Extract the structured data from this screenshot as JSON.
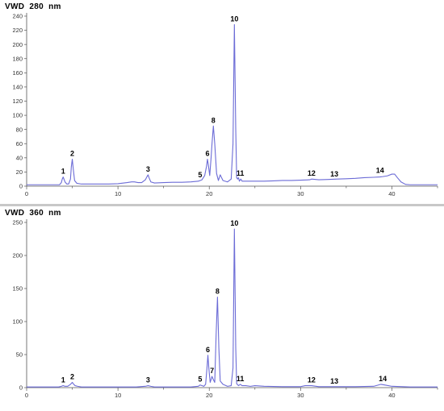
{
  "chart_data": [
    {
      "type": "line",
      "title": "VWD  280  nm",
      "xlim": [
        0,
        45
      ],
      "ylim": [
        0,
        240
      ],
      "x_ticks": [
        0,
        10,
        20,
        30,
        40
      ],
      "y_ticks": [
        0,
        20,
        40,
        60,
        80,
        100,
        120,
        140,
        160,
        180,
        200,
        220,
        240
      ],
      "line_color": "#6b6bd6",
      "grid": false,
      "legend": "none",
      "series": [
        {
          "x": [
            0,
            1,
            2,
            3,
            3.6,
            3.8,
            3.9,
            4.0,
            4.2,
            4.4,
            4.6,
            4.8,
            4.9,
            5.0,
            5.1,
            5.25,
            5.5,
            6,
            7,
            8,
            9,
            10,
            11,
            11.5,
            11.8,
            12.2,
            12.6,
            13.0,
            13.2,
            13.3,
            13.4,
            13.6,
            14,
            15,
            16,
            17,
            18,
            18.8,
            19.2,
            19.5,
            19.7,
            19.8,
            19.9,
            20.05,
            20.2,
            20.3,
            20.45,
            20.6,
            20.8,
            21.0,
            21.2,
            21.5,
            22.0,
            22.4,
            22.6,
            22.75,
            22.9,
            23.0,
            23.1,
            23.2,
            23.3,
            23.45,
            23.6,
            24,
            25,
            26,
            27,
            28,
            29,
            30,
            31,
            31.2,
            32,
            33,
            34,
            35,
            36,
            37,
            38,
            38.7,
            39,
            39.5,
            40.0,
            40.3,
            40.6,
            41.0,
            41.5,
            42,
            43,
            44,
            45
          ],
          "y": [
            2,
            2,
            2,
            2,
            2,
            5,
            10,
            13,
            6,
            3,
            3,
            10,
            28,
            38,
            25,
            8,
            4,
            3,
            3,
            3,
            3,
            3.5,
            5,
            6,
            6,
            5,
            5,
            9,
            14,
            16,
            12,
            6,
            4.5,
            5,
            5.5,
            5.5,
            6,
            7,
            9,
            15,
            28,
            38,
            30,
            15,
            40,
            60,
            85,
            60,
            18,
            8,
            16,
            8,
            6,
            10,
            60,
            228,
            80,
            12,
            10,
            12,
            7,
            10,
            7,
            7,
            7,
            7,
            7.5,
            8,
            8,
            8.5,
            9,
            10,
            9,
            9.5,
            10,
            10.5,
            11,
            12,
            12.5,
            13,
            13.5,
            14.5,
            17,
            17,
            12,
            6,
            2.5,
            2,
            2,
            2,
            2
          ]
        }
      ],
      "peak_labels": [
        {
          "text": "1",
          "x": 4.0,
          "y": 13
        },
        {
          "text": "2",
          "x": 5.0,
          "y": 38
        },
        {
          "text": "3",
          "x": 13.3,
          "y": 16
        },
        {
          "text": "5",
          "x": 19.0,
          "y": 8
        },
        {
          "text": "6",
          "x": 19.8,
          "y": 38
        },
        {
          "text": "8",
          "x": 20.45,
          "y": 85
        },
        {
          "text": "10",
          "x": 22.75,
          "y": 228
        },
        {
          "text": "11",
          "x": 23.4,
          "y": 10
        },
        {
          "text": "12",
          "x": 31.2,
          "y": 10
        },
        {
          "text": "13",
          "x": 33.7,
          "y": 9
        },
        {
          "text": "14",
          "x": 38.7,
          "y": 14.5
        }
      ]
    },
    {
      "type": "line",
      "title": "VWD  360  nm",
      "xlim": [
        0,
        45
      ],
      "ylim": [
        0,
        250
      ],
      "x_ticks": [
        0,
        10,
        20,
        30,
        40
      ],
      "y_ticks": [
        0,
        50,
        100,
        150,
        200,
        250
      ],
      "line_color": "#6b6bd6",
      "grid": false,
      "legend": "none",
      "series": [
        {
          "x": [
            0,
            1,
            2,
            3,
            3.5,
            3.8,
            4.0,
            4.2,
            4.5,
            4.8,
            5.0,
            5.1,
            5.3,
            5.6,
            6,
            8,
            10,
            12,
            13.0,
            13.3,
            13.6,
            14,
            16,
            18,
            18.8,
            19.0,
            19.2,
            19.4,
            19.6,
            19.75,
            19.85,
            19.95,
            20.1,
            20.3,
            20.45,
            20.6,
            20.75,
            20.9,
            21.05,
            21.2,
            21.5,
            22.0,
            22.4,
            22.6,
            22.75,
            22.9,
            23.0,
            23.2,
            23.4,
            23.6,
            24,
            24.5,
            25,
            26,
            28,
            30,
            30.5,
            31.2,
            32,
            33.7,
            36,
            38,
            38.8,
            39.2,
            40,
            42,
            45
          ],
          "y": [
            1,
            1,
            1,
            1,
            1,
            2,
            3,
            2,
            2,
            5,
            8,
            6,
            3,
            2,
            1,
            1,
            1,
            1,
            2,
            3,
            2,
            1,
            1,
            1,
            2,
            4,
            3,
            2,
            5,
            30,
            49,
            30,
            8,
            17,
            12,
            8,
            80,
            137,
            60,
            10,
            5,
            2,
            3,
            30,
            240,
            60,
            6,
            3,
            5,
            3,
            3,
            2,
            3,
            2,
            1.5,
            1.5,
            3,
            3,
            1.5,
            1.5,
            1.5,
            2,
            5,
            4,
            2,
            1,
            1
          ]
        }
      ],
      "peak_labels": [
        {
          "text": "1",
          "x": 4.0,
          "y": 3
        },
        {
          "text": "2",
          "x": 5.0,
          "y": 8
        },
        {
          "text": "3",
          "x": 13.3,
          "y": 3
        },
        {
          "text": "5",
          "x": 19.0,
          "y": 4
        },
        {
          "text": "6",
          "x": 19.85,
          "y": 49
        },
        {
          "text": "7",
          "x": 20.3,
          "y": 17
        },
        {
          "text": "8",
          "x": 20.9,
          "y": 137
        },
        {
          "text": "10",
          "x": 22.75,
          "y": 240
        },
        {
          "text": "11",
          "x": 23.4,
          "y": 5
        },
        {
          "text": "12",
          "x": 31.2,
          "y": 3
        },
        {
          "text": "13",
          "x": 33.7,
          "y": 1.5
        },
        {
          "text": "14",
          "x": 39.0,
          "y": 5
        }
      ]
    }
  ]
}
